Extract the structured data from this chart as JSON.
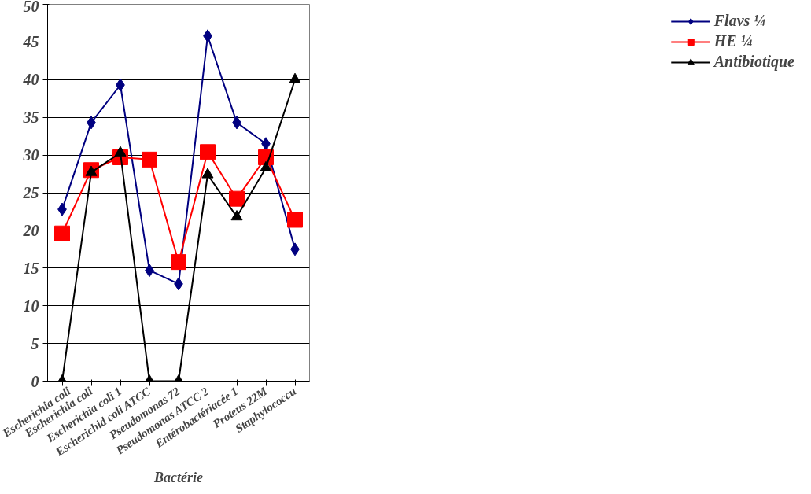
{
  "chart_data": {
    "type": "line",
    "xlabel": "Bactérie",
    "categories": [
      "Escherichia coli",
      "Escherichia coli",
      "Escherichia coli 1",
      "Escherichid coli ATCC",
      "Pseudomonas 72",
      "Pseudomonas ATCC 2",
      "Entérobactériacée 1",
      "Proteus 22M",
      "Staphylococcu"
    ],
    "series": [
      {
        "name": "Flavs ¼",
        "color": "#000080",
        "marker": "diamond",
        "values": [
          22.8,
          34.3,
          39.3,
          14.7,
          12.9,
          45.8,
          34.3,
          31.5,
          17.5
        ]
      },
      {
        "name": "HE ¼",
        "color": "#ff0000",
        "marker": "square",
        "values": [
          19.6,
          28.0,
          29.7,
          29.4,
          15.8,
          30.4,
          24.2,
          29.7,
          21.4
        ]
      },
      {
        "name": "Antibiotique",
        "color": "#000000",
        "marker": "triangle",
        "values": [
          0,
          27.7,
          30.3,
          0,
          0,
          27.4,
          21.8,
          28.3,
          40.0
        ]
      }
    ],
    "ylim": [
      0,
      50
    ],
    "yticks": [
      0,
      5,
      10,
      15,
      20,
      25,
      30,
      35,
      40,
      45,
      50
    ],
    "grid": "y",
    "legend": "right"
  }
}
